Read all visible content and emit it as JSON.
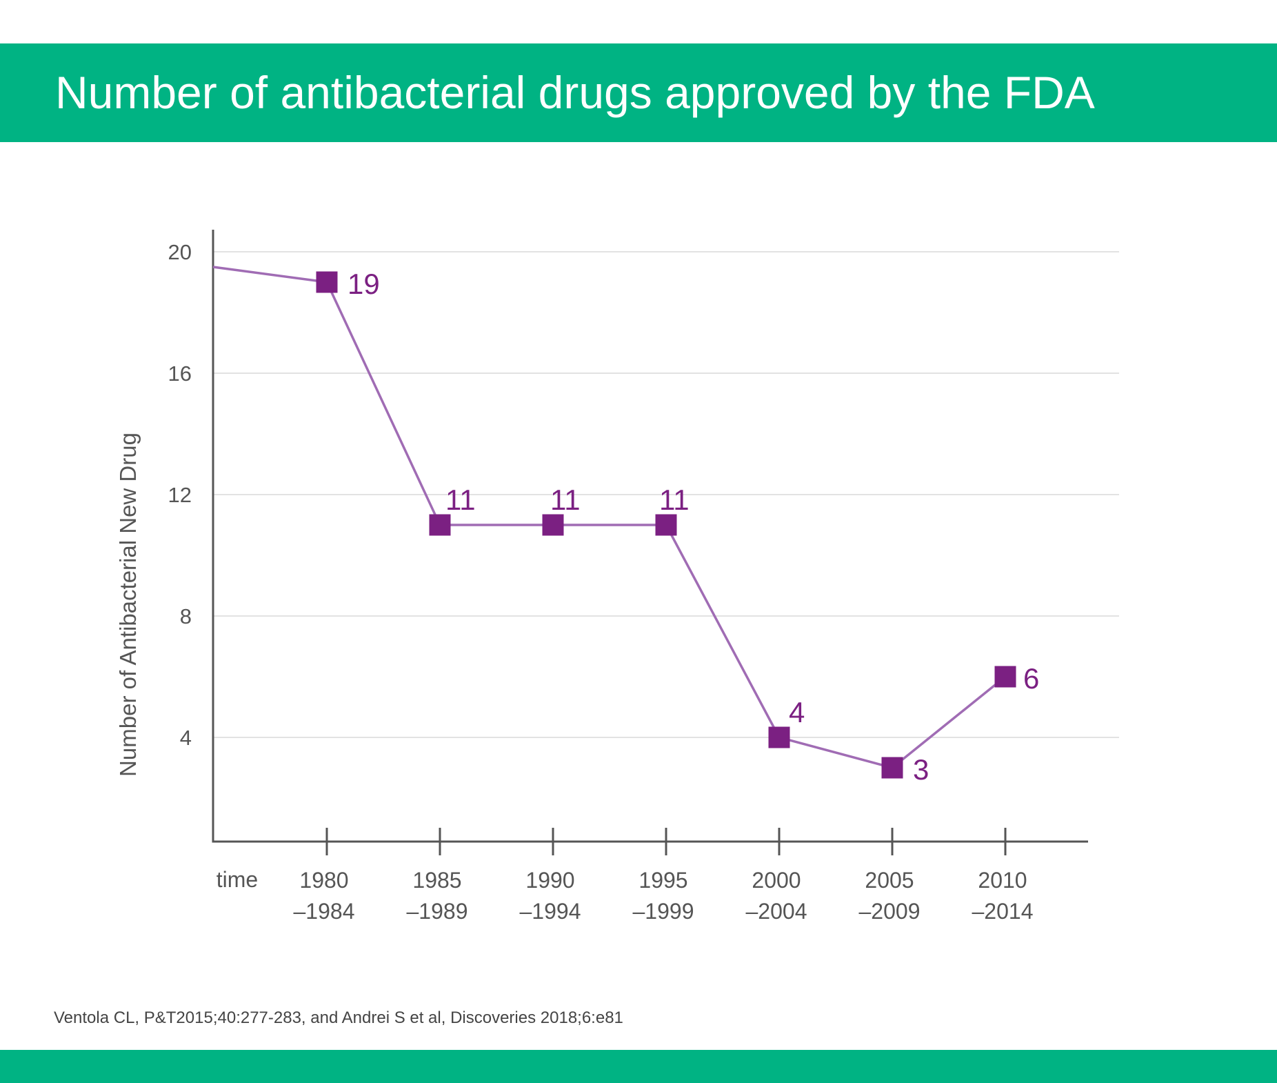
{
  "title": "Number of antibacterial drugs approved by the FDA",
  "source": "Ventola CL, P&T2015;40:277-283, and Andrei S et al, Discoveries 2018;6:e81",
  "colors": {
    "band": "#00b383",
    "series": "#7b2082",
    "line": "#a06cb4",
    "axis": "#555555",
    "grid": "#d9d9d9",
    "tick_text": "#555555"
  },
  "chart_data": {
    "type": "line",
    "title": "Number of antibacterial drugs approved by the FDA",
    "xlabel": "time",
    "ylabel": "Number of Antibacterial New Drug",
    "categories": [
      [
        "1980",
        "–1984"
      ],
      [
        "1985",
        "–1989"
      ],
      [
        "1990",
        "–1994"
      ],
      [
        "1995",
        "–1999"
      ],
      [
        "2000",
        "–2004"
      ],
      [
        "2005",
        "–2009"
      ],
      [
        "2010",
        "–2014"
      ]
    ],
    "values": [
      19,
      11,
      11,
      11,
      4,
      3,
      6
    ],
    "data_labels": [
      "19",
      "11",
      "11",
      "11",
      "4",
      "3",
      "6"
    ],
    "start_value": 19.5,
    "yticks": [
      4,
      8,
      12,
      16,
      20
    ],
    "ylim": [
      0.6,
      20.7
    ],
    "grid": true,
    "legend": "none"
  }
}
